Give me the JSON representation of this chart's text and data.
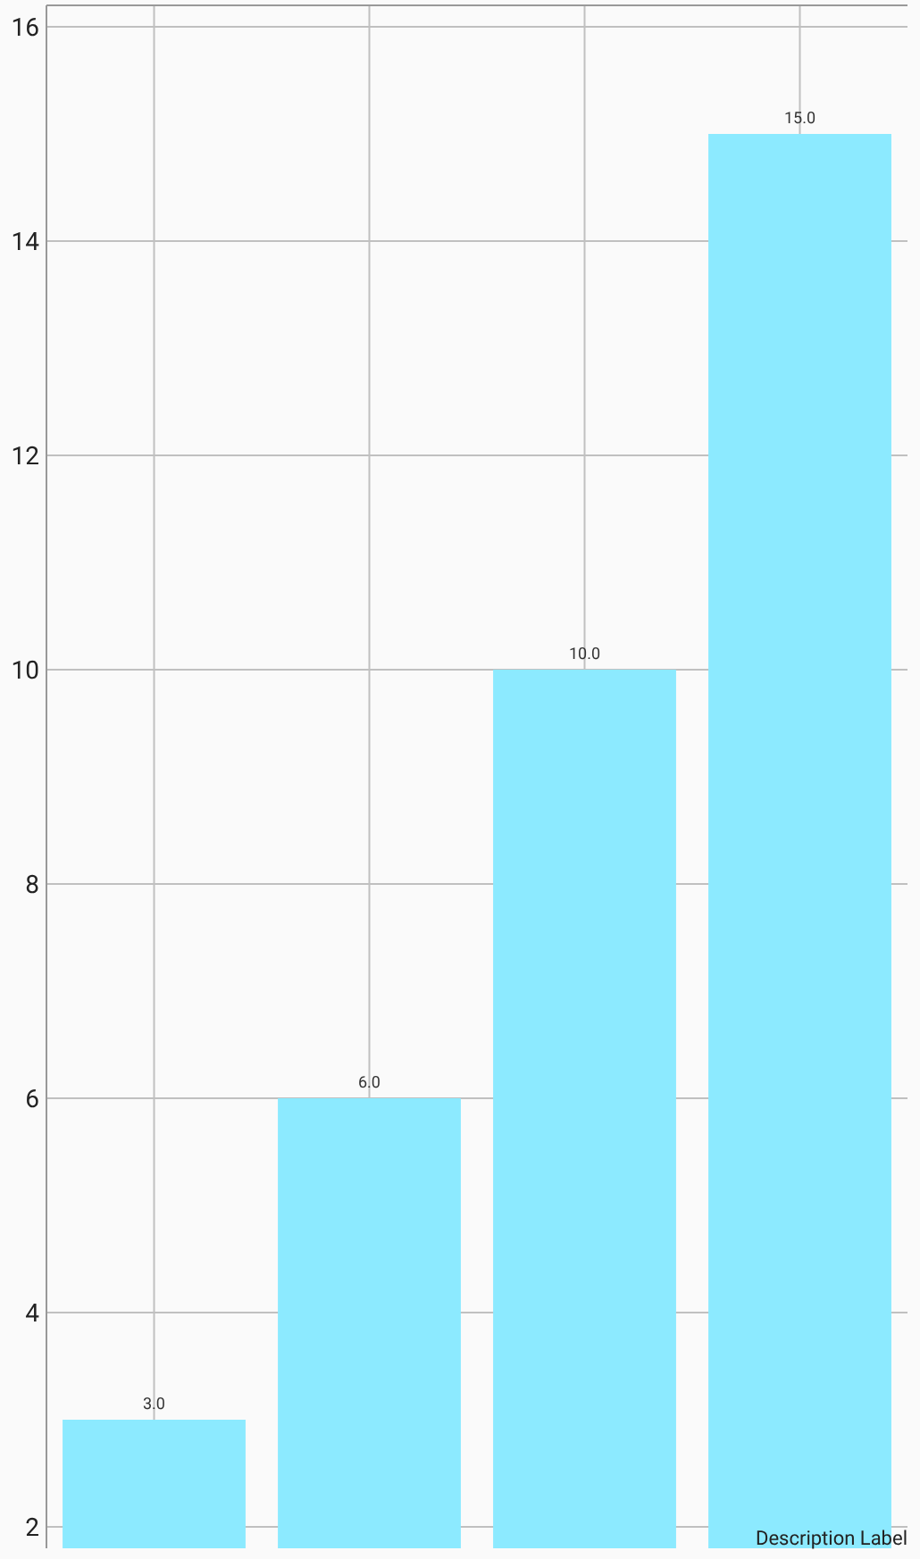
{
  "chart_data": {
    "type": "bar",
    "categories": [
      null,
      null,
      null,
      null
    ],
    "values": [
      3,
      6,
      10,
      15
    ],
    "color": "#8ceaff",
    "value_labels": [
      "3.0",
      "6.0",
      "10.0",
      "15.0"
    ],
    "ylim": [
      1.8,
      16.2
    ],
    "yticks": [
      2,
      4,
      6,
      8,
      10,
      12,
      14,
      16
    ],
    "grid": true,
    "tick_labels": "y",
    "annotations": [
      "Description Label"
    ]
  }
}
